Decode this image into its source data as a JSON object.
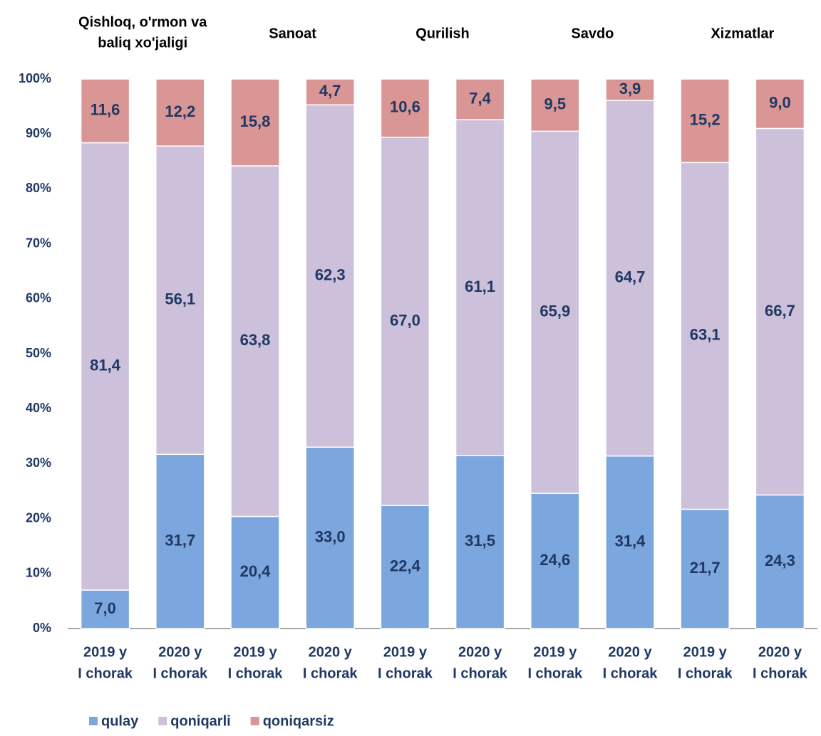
{
  "chart_data": {
    "type": "stacked_bar",
    "groups": [
      [
        "Qishloq, o'rmon va",
        "baliq xo'jaligi"
      ],
      [
        "Sanoat"
      ],
      [
        "Qurilish"
      ],
      [
        "Savdo"
      ],
      [
        "Xizmatlar"
      ]
    ],
    "categories": [
      [
        "2019 y",
        "I chorak"
      ],
      [
        "2020 y",
        "I chorak"
      ],
      [
        "2019 y",
        "I chorak"
      ],
      [
        "2020 y",
        "I chorak"
      ],
      [
        "2019 y",
        "I chorak"
      ],
      [
        "2020 y",
        "I chorak"
      ],
      [
        "2019 y",
        "I chorak"
      ],
      [
        "2020 y",
        "I chorak"
      ],
      [
        "2019 y",
        "I chorak"
      ],
      [
        "2020 y",
        "I chorak"
      ]
    ],
    "series": [
      {
        "name": "qulay",
        "color": "#7ba7de",
        "values": [
          7.0,
          31.7,
          20.4,
          33.0,
          22.4,
          31.5,
          24.6,
          31.4,
          21.7,
          24.3
        ],
        "value_labels": [
          "7,0",
          "31,7",
          "20,4",
          "33,0",
          "22,4",
          "31,5",
          "24,6",
          "31,4",
          "21,7",
          "24,3"
        ]
      },
      {
        "name": "qoniqarli",
        "color": "#ccc0da",
        "values": [
          81.4,
          56.1,
          63.8,
          62.3,
          67.0,
          61.1,
          65.9,
          64.7,
          63.1,
          66.7
        ],
        "value_labels": [
          "81,4",
          "56,1",
          "63,8",
          "62,3",
          "67,0",
          "61,1",
          "65,9",
          "64,7",
          "63,1",
          "66,7"
        ]
      },
      {
        "name": "qoniqarsiz",
        "color": "#d99694",
        "values": [
          11.6,
          12.2,
          15.8,
          4.7,
          10.6,
          7.4,
          9.5,
          3.9,
          15.2,
          9.0
        ],
        "value_labels": [
          "11,6",
          "12,2",
          "15,8",
          "4,7",
          "10,6",
          "7,4",
          "9,5",
          "3,9",
          "15,2",
          "9,0"
        ]
      }
    ],
    "ylim": [
      0,
      100
    ],
    "yticks": [
      {
        "value": 0,
        "label": "0%"
      },
      {
        "value": 10,
        "label": "10%"
      },
      {
        "value": 20,
        "label": "20%"
      },
      {
        "value": 30,
        "label": "30%"
      },
      {
        "value": 40,
        "label": "40%"
      },
      {
        "value": 50,
        "label": "50%"
      },
      {
        "value": 60,
        "label": "60%"
      },
      {
        "value": 70,
        "label": "70%"
      },
      {
        "value": 80,
        "label": "80%"
      },
      {
        "value": 90,
        "label": "90%"
      },
      {
        "value": 100,
        "label": "100%"
      }
    ],
    "grid": false,
    "legend": "bottom"
  }
}
